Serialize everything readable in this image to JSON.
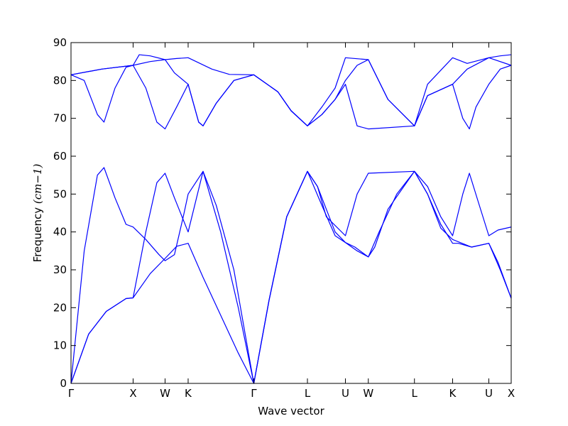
{
  "chart_data": {
    "type": "line",
    "xlabel": "Wave vector",
    "ylabel": "Frequency",
    "ylabel_unit": "(cm−1)",
    "ylim": [
      0,
      90
    ],
    "yticks": [
      0,
      10,
      20,
      30,
      40,
      50,
      60,
      70,
      80,
      90
    ],
    "xlim": [
      0,
      1
    ],
    "grid": false,
    "line_color": "#0000ff",
    "kpoints": [
      {
        "label": "Γ",
        "x": 0.0
      },
      {
        "label": "X",
        "x": 0.1411
      },
      {
        "label": "W",
        "x": 0.2137
      },
      {
        "label": "K",
        "x": 0.2661
      },
      {
        "label": "Γ",
        "x": 0.4153
      },
      {
        "label": "L",
        "x": 0.5371
      },
      {
        "label": "U",
        "x": 0.6234
      },
      {
        "label": "W",
        "x": 0.6754
      },
      {
        "label": "L",
        "x": 0.7802
      },
      {
        "label": "K",
        "x": 0.8669
      },
      {
        "label": "U",
        "x": 0.9492
      },
      {
        "label": "X",
        "x": 1.0
      }
    ],
    "series": [
      {
        "values": [
          [
            0.0,
            0
          ],
          [
            0.04,
            13
          ],
          [
            0.08,
            19
          ],
          [
            0.125,
            22.4
          ],
          [
            0.141,
            22.6
          ],
          [
            0.18,
            29
          ],
          [
            0.2137,
            33
          ],
          [
            0.24,
            36.2
          ],
          [
            0.2661,
            37.0
          ],
          [
            0.3,
            28
          ],
          [
            0.34,
            18
          ],
          [
            0.38,
            8
          ],
          [
            0.4153,
            0
          ],
          [
            0.45,
            22
          ],
          [
            0.49,
            44
          ],
          [
            0.5371,
            56.0
          ],
          [
            0.56,
            52
          ],
          [
            0.6,
            40
          ],
          [
            0.6234,
            37.2
          ],
          [
            0.65,
            35
          ],
          [
            0.6754,
            33.4
          ],
          [
            0.7,
            40
          ],
          [
            0.74,
            50
          ],
          [
            0.7802,
            56.0
          ],
          [
            0.81,
            50
          ],
          [
            0.84,
            41
          ],
          [
            0.8669,
            38.0
          ],
          [
            0.91,
            36.0
          ],
          [
            0.9492,
            37.0
          ],
          [
            0.97,
            32
          ],
          [
            1.0,
            22.5
          ]
        ]
      },
      {
        "values": [
          [
            0.0,
            0
          ],
          [
            0.04,
            13
          ],
          [
            0.08,
            19
          ],
          [
            0.125,
            22.4
          ],
          [
            0.141,
            22.6
          ],
          [
            0.17,
            40
          ],
          [
            0.195,
            53
          ],
          [
            0.2137,
            55.5
          ],
          [
            0.235,
            49
          ],
          [
            0.2661,
            40
          ],
          [
            0.3,
            56.0
          ],
          [
            0.34,
            40
          ],
          [
            0.38,
            20
          ],
          [
            0.4153,
            0
          ],
          [
            0.45,
            22
          ],
          [
            0.49,
            44
          ],
          [
            0.5371,
            56.0
          ],
          [
            0.57,
            47
          ],
          [
            0.6,
            39
          ],
          [
            0.6234,
            37.2
          ],
          [
            0.645,
            36
          ],
          [
            0.6754,
            33.4
          ],
          [
            0.69,
            36
          ],
          [
            0.72,
            46
          ],
          [
            0.7802,
            56.0
          ],
          [
            0.81,
            50
          ],
          [
            0.84,
            42
          ],
          [
            0.8669,
            37.0
          ],
          [
            0.88,
            37
          ],
          [
            0.91,
            36.0
          ],
          [
            0.9492,
            37.0
          ],
          [
            0.975,
            30
          ],
          [
            1.0,
            22.5
          ]
        ]
      },
      {
        "values": [
          [
            0.0,
            0
          ],
          [
            0.03,
            35
          ],
          [
            0.06,
            55
          ],
          [
            0.075,
            57.0
          ],
          [
            0.1,
            49
          ],
          [
            0.125,
            42
          ],
          [
            0.141,
            41.3
          ],
          [
            0.17,
            38
          ],
          [
            0.2,
            34
          ],
          [
            0.2137,
            32.4
          ],
          [
            0.235,
            34
          ],
          [
            0.255,
            44
          ],
          [
            0.2661,
            50
          ],
          [
            0.3,
            56.0
          ],
          [
            0.33,
            47
          ],
          [
            0.37,
            30
          ],
          [
            0.4153,
            0
          ],
          [
            0.45,
            22
          ],
          [
            0.49,
            44
          ],
          [
            0.5371,
            56.0
          ],
          [
            0.56,
            52
          ],
          [
            0.58,
            44
          ],
          [
            0.6234,
            39
          ],
          [
            0.65,
            50
          ],
          [
            0.6754,
            55.5
          ],
          [
            0.7802,
            56.0
          ],
          [
            0.81,
            52
          ],
          [
            0.84,
            44
          ],
          [
            0.8669,
            39
          ],
          [
            0.89,
            50
          ],
          [
            0.905,
            55.5
          ],
          [
            0.925,
            48
          ],
          [
            0.9492,
            39
          ],
          [
            0.97,
            40.5
          ],
          [
            1.0,
            41.3
          ]
        ]
      },
      {
        "values": [
          [
            0.0,
            81.5
          ],
          [
            0.03,
            80
          ],
          [
            0.06,
            71
          ],
          [
            0.075,
            69.0
          ],
          [
            0.1,
            78
          ],
          [
            0.125,
            83.5
          ],
          [
            0.141,
            84.0
          ],
          [
            0.18,
            85.0
          ],
          [
            0.2137,
            85.5
          ],
          [
            0.24,
            85.8
          ],
          [
            0.2661,
            86.0
          ],
          [
            0.32,
            83
          ],
          [
            0.36,
            81.6
          ],
          [
            0.4153,
            81.5
          ],
          [
            0.47,
            77
          ],
          [
            0.5,
            72
          ],
          [
            0.5371,
            68.0
          ],
          [
            0.57,
            73
          ],
          [
            0.6,
            78
          ],
          [
            0.6234,
            86.0
          ],
          [
            0.6754,
            85.5
          ],
          [
            0.72,
            75
          ],
          [
            0.7802,
            68.0
          ],
          [
            0.81,
            76
          ],
          [
            0.8669,
            79
          ],
          [
            0.9,
            83
          ],
          [
            0.9492,
            86.0
          ],
          [
            0.975,
            86.5
          ],
          [
            1.0,
            86.8
          ]
        ]
      },
      {
        "values": [
          [
            0.0,
            81.5
          ],
          [
            0.07,
            83.0
          ],
          [
            0.141,
            84.0
          ],
          [
            0.17,
            78
          ],
          [
            0.195,
            69
          ],
          [
            0.2137,
            67.2
          ],
          [
            0.24,
            73
          ],
          [
            0.2661,
            79
          ],
          [
            0.29,
            69
          ],
          [
            0.3,
            68.0
          ],
          [
            0.33,
            74
          ],
          [
            0.37,
            80
          ],
          [
            0.4153,
            81.5
          ],
          [
            0.47,
            77
          ],
          [
            0.5,
            72
          ],
          [
            0.5371,
            68.0
          ],
          [
            0.57,
            71
          ],
          [
            0.6,
            75
          ],
          [
            0.6234,
            79
          ],
          [
            0.65,
            68
          ],
          [
            0.6754,
            67.2
          ],
          [
            0.7802,
            68.0
          ],
          [
            0.81,
            76
          ],
          [
            0.8669,
            79
          ],
          [
            0.89,
            70
          ],
          [
            0.905,
            67.2
          ],
          [
            0.92,
            73
          ],
          [
            0.9492,
            79
          ],
          [
            0.975,
            83
          ],
          [
            1.0,
            84.0
          ]
        ]
      },
      {
        "values": [
          [
            0.0,
            81.5
          ],
          [
            0.07,
            83.0
          ],
          [
            0.141,
            84.0
          ],
          [
            0.155,
            86.8
          ],
          [
            0.18,
            86.5
          ],
          [
            0.2137,
            85.5
          ],
          [
            0.235,
            82
          ],
          [
            0.2661,
            79
          ],
          [
            0.29,
            69
          ],
          [
            0.3,
            68.0
          ],
          [
            0.33,
            74
          ],
          [
            0.37,
            80
          ],
          [
            0.4153,
            81.5
          ],
          [
            0.47,
            77
          ],
          [
            0.5,
            72
          ],
          [
            0.5371,
            68.0
          ],
          [
            0.57,
            71
          ],
          [
            0.6,
            75
          ],
          [
            0.6234,
            80
          ],
          [
            0.65,
            84
          ],
          [
            0.6754,
            85.5
          ],
          [
            0.72,
            75
          ],
          [
            0.7802,
            68.0
          ],
          [
            0.81,
            79
          ],
          [
            0.8669,
            86.0
          ],
          [
            0.9,
            84.5
          ],
          [
            0.9492,
            86.0
          ],
          [
            1.0,
            84.0
          ]
        ]
      }
    ]
  }
}
